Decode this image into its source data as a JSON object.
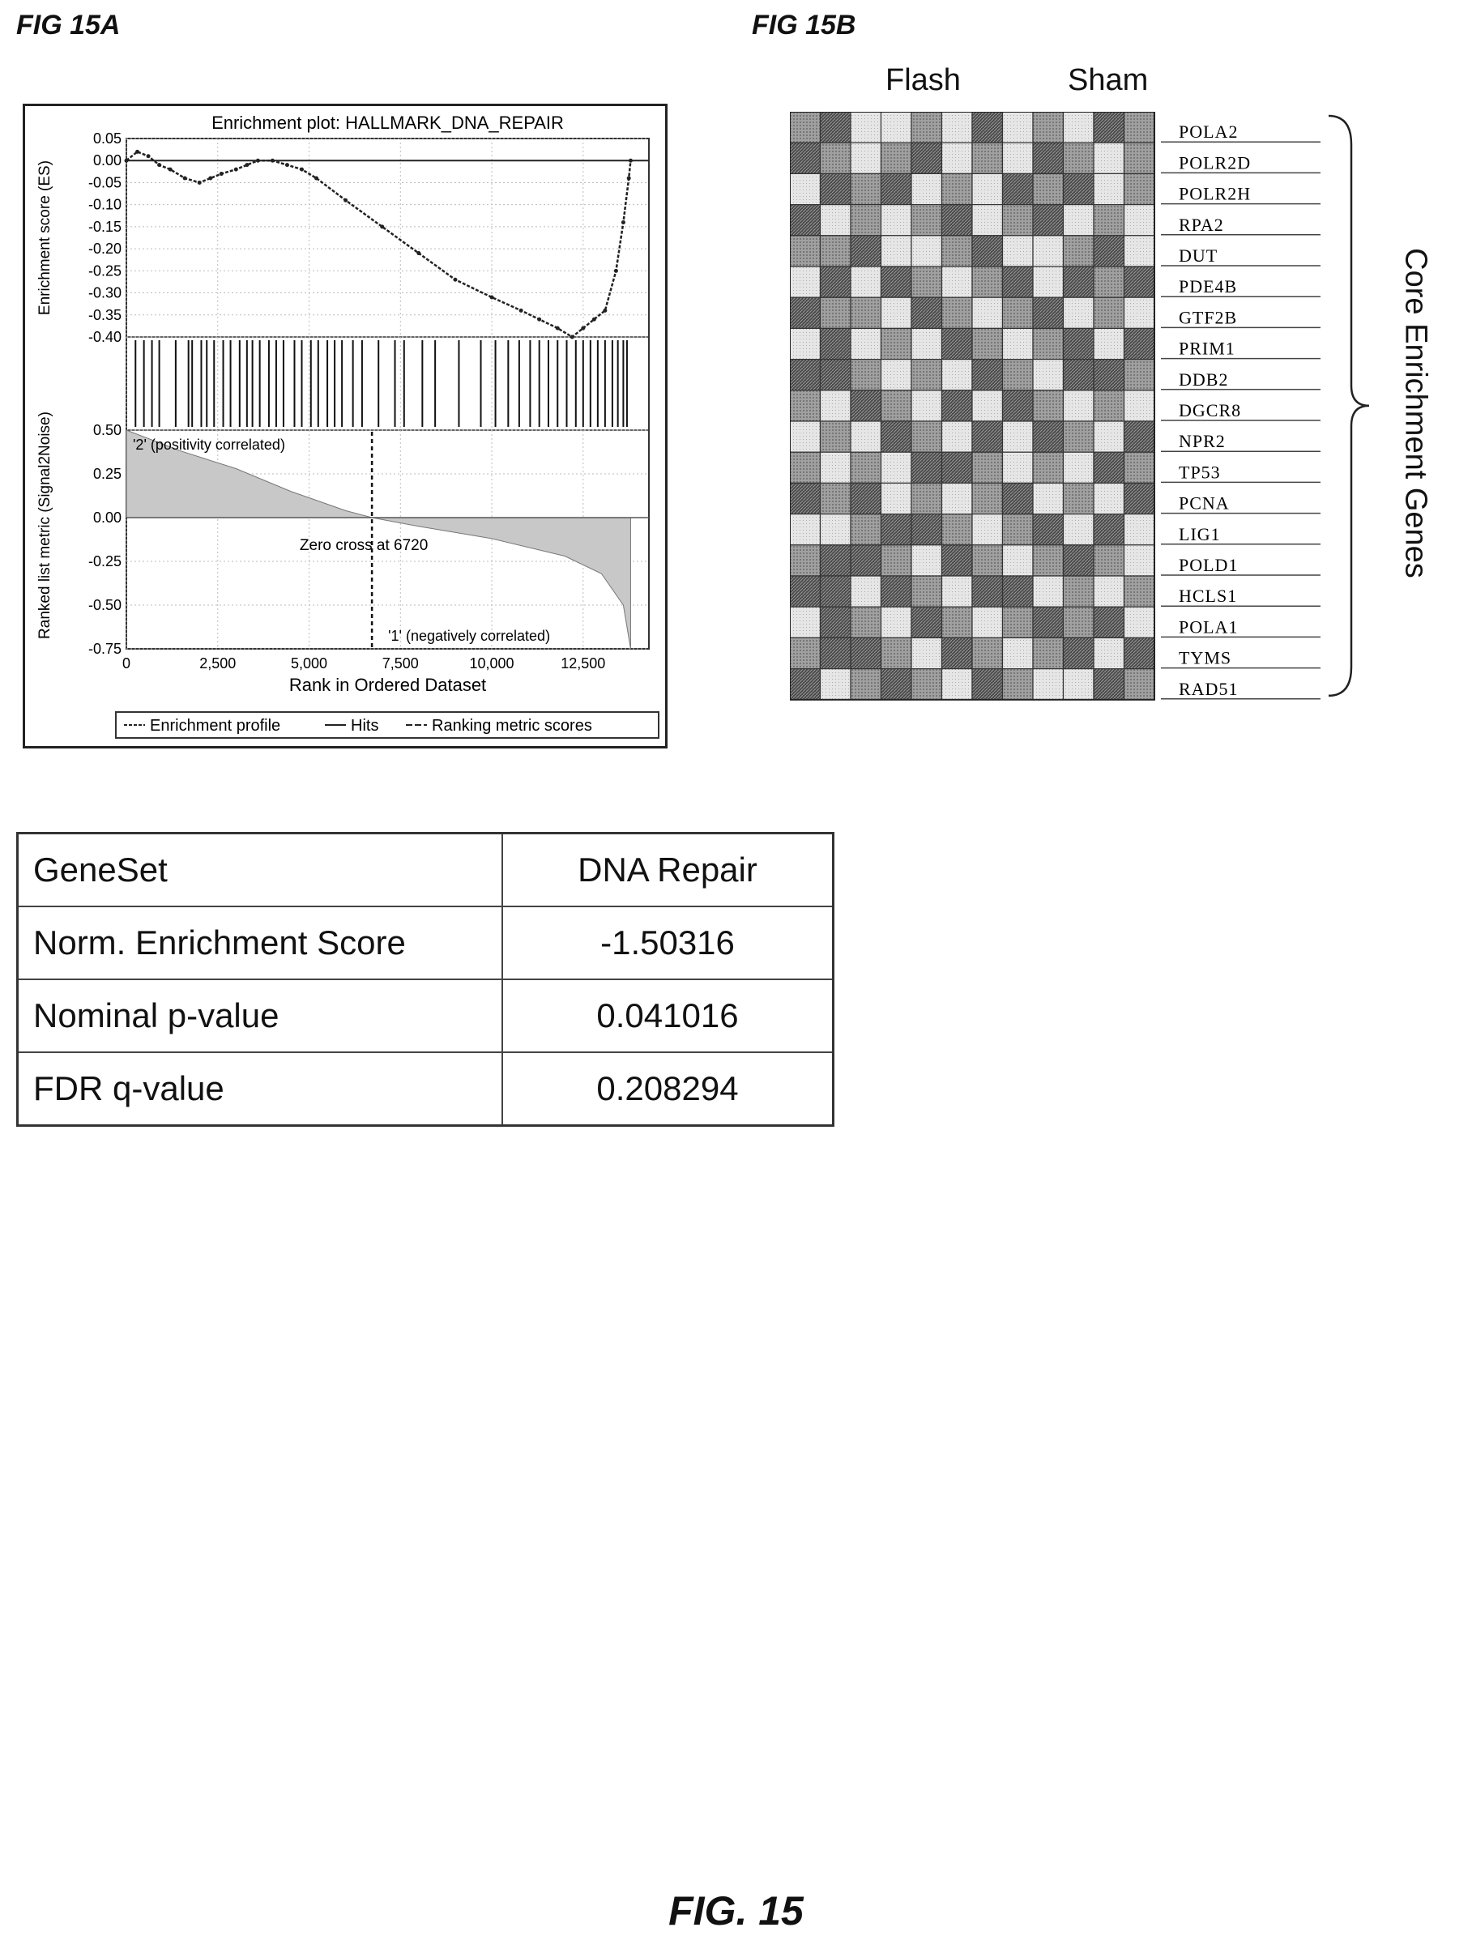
{
  "labels": {
    "fig_a": "FIG 15A",
    "fig_b": "FIG 15B",
    "fig_main": "FIG. 15"
  },
  "chart_data": [
    {
      "type": "line",
      "title": "Enrichment plot: HALLMARK_DNA_REPAIR",
      "xlabel": "Rank in Ordered Dataset",
      "ylabel_top": "Enrichment score (ES)",
      "ylabel_bottom": "Ranked list metric (Signal2Noise)",
      "x_ticks": [
        0,
        2500,
        5000,
        7500,
        10000,
        12500
      ],
      "x_tick_labels": [
        "0",
        "2,500",
        "5,000",
        "7,500",
        "10,000",
        "12,500"
      ],
      "xlim": [
        0,
        14300
      ],
      "es_ylim": [
        -0.4,
        0.05
      ],
      "es_ticks": [
        "0.05",
        "0.00",
        "-0.05",
        "-0.10",
        "-0.15",
        "-0.20",
        "-0.25",
        "-0.30",
        "-0.35",
        "-0.40"
      ],
      "metric_ylim": [
        -0.75,
        0.5
      ],
      "metric_ticks": [
        "0.50",
        "0.25",
        "0.00",
        "-0.25",
        "-0.50",
        "-0.75"
      ],
      "enrichment_profile": {
        "x": [
          0,
          300,
          600,
          900,
          1200,
          1600,
          2000,
          2300,
          2600,
          3000,
          3300,
          3600,
          4000,
          4400,
          4800,
          5200,
          6000,
          7000,
          8000,
          9000,
          10000,
          10800,
          11300,
          11800,
          12200,
          12500,
          12800,
          13100,
          13400,
          13600,
          13750,
          13800
        ],
        "y": [
          0.0,
          0.02,
          0.01,
          -0.01,
          -0.02,
          -0.04,
          -0.05,
          -0.04,
          -0.03,
          -0.02,
          -0.01,
          0.0,
          0.0,
          -0.01,
          -0.02,
          -0.04,
          -0.09,
          -0.15,
          -0.21,
          -0.27,
          -0.31,
          -0.34,
          -0.36,
          -0.38,
          -0.4,
          -0.38,
          -0.36,
          -0.34,
          -0.25,
          -0.14,
          -0.04,
          0.0
        ]
      },
      "hits": [
        250,
        480,
        700,
        900,
        1350,
        1700,
        1800,
        2050,
        2200,
        2400,
        2650,
        2850,
        3100,
        3300,
        3450,
        3650,
        3900,
        4100,
        4300,
        4600,
        4800,
        5050,
        5250,
        5500,
        5700,
        5900,
        6200,
        6450,
        6900,
        7350,
        7600,
        8100,
        8450,
        9100,
        9700,
        10100,
        10450,
        10750,
        11050,
        11300,
        11550,
        11800,
        12050,
        12300,
        12500,
        12700,
        12900,
        13100,
        13300,
        13450,
        13600,
        13700
      ],
      "ranking_metric": {
        "x": [
          0,
          1500,
          3000,
          4500,
          6000,
          6720,
          8000,
          10000,
          12000,
          13000,
          13600,
          13800
        ],
        "y": [
          0.5,
          0.38,
          0.28,
          0.15,
          0.04,
          0.0,
          -0.05,
          -0.12,
          -0.22,
          -0.32,
          -0.5,
          -0.75
        ]
      },
      "annotations": {
        "pos": "'2' (positivity correlated)",
        "zero": "Zero cross at 6720",
        "neg": "'1' (negatively correlated)"
      },
      "zero_cross": 6720,
      "legend": [
        "Enrichment profile",
        "Hits",
        "Ranking metric scores"
      ],
      "legend_position": "bottom"
    },
    {
      "type": "heatmap",
      "columns_header": [
        "Flash",
        "Sham"
      ],
      "rows": [
        "POLA2",
        "POLR2D",
        "POLR2H",
        "RPA2",
        "DUT",
        "PDE4B",
        "GTF2B",
        "PRIM1",
        "DDB2",
        "DGCR8",
        "NPR2",
        "TP53",
        "PCNA",
        "LIG1",
        "POLD1",
        "HCLS1",
        "POLA1",
        "TYMS",
        "RAD51"
      ],
      "n_columns": 12,
      "values": [
        [
          2,
          3,
          1,
          1,
          2,
          1,
          3,
          1,
          2,
          1,
          3,
          2
        ],
        [
          3,
          2,
          1,
          2,
          3,
          1,
          2,
          1,
          3,
          2,
          1,
          2
        ],
        [
          1,
          3,
          2,
          3,
          1,
          2,
          1,
          3,
          2,
          3,
          1,
          2
        ],
        [
          3,
          1,
          2,
          1,
          2,
          3,
          1,
          2,
          3,
          1,
          2,
          1
        ],
        [
          2,
          2,
          3,
          1,
          1,
          2,
          3,
          1,
          1,
          2,
          3,
          1
        ],
        [
          1,
          3,
          1,
          3,
          2,
          1,
          2,
          3,
          1,
          3,
          2,
          3
        ],
        [
          3,
          2,
          2,
          1,
          3,
          2,
          1,
          2,
          3,
          1,
          2,
          1
        ],
        [
          1,
          3,
          1,
          2,
          1,
          3,
          2,
          1,
          2,
          3,
          1,
          3
        ],
        [
          3,
          3,
          2,
          1,
          2,
          1,
          3,
          2,
          1,
          3,
          3,
          2
        ],
        [
          2,
          1,
          3,
          2,
          1,
          3,
          1,
          3,
          2,
          1,
          2,
          1
        ],
        [
          1,
          2,
          1,
          3,
          2,
          1,
          3,
          1,
          3,
          2,
          1,
          3
        ],
        [
          2,
          1,
          2,
          1,
          3,
          3,
          2,
          1,
          2,
          1,
          3,
          2
        ],
        [
          3,
          2,
          3,
          1,
          2,
          1,
          2,
          3,
          1,
          2,
          1,
          3
        ],
        [
          1,
          1,
          2,
          3,
          3,
          2,
          1,
          2,
          3,
          1,
          3,
          1
        ],
        [
          2,
          3,
          3,
          2,
          1,
          3,
          2,
          1,
          2,
          3,
          2,
          1
        ],
        [
          3,
          3,
          1,
          3,
          2,
          1,
          3,
          3,
          1,
          2,
          1,
          2
        ],
        [
          1,
          3,
          2,
          1,
          3,
          2,
          1,
          2,
          3,
          2,
          3,
          1
        ],
        [
          2,
          3,
          3,
          2,
          1,
          3,
          2,
          1,
          2,
          3,
          1,
          3
        ],
        [
          3,
          1,
          2,
          3,
          2,
          1,
          3,
          2,
          1,
          1,
          3,
          2
        ]
      ],
      "side_label": "Core Enrichment Genes"
    }
  ],
  "stats_table": [
    [
      "GeneSet",
      "DNA Repair"
    ],
    [
      "Norm. Enrichment Score",
      "-1.50316"
    ],
    [
      "Nominal p-value",
      "0.041016"
    ],
    [
      "FDR q-value",
      "0.208294"
    ]
  ]
}
